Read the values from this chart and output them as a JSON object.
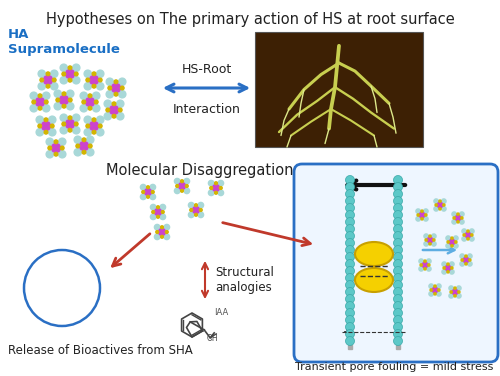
{
  "title": "Hypotheses on The primary action of HS at root surface",
  "title_fontsize": 10.5,
  "title_color": "#222222",
  "bg_color": "#ffffff",
  "ha_label_color": "#1a6fc4",
  "ha_label_fontsize": 9.5,
  "root_bg": "#3d2004",
  "box_border_color": "#2a6fc4",
  "arrow_color_blue": "#2a6fc4",
  "arrow_color_red": "#c0392b",
  "arrow_color_black": "#111111",
  "arrow_color_light_blue": "#5dade2",
  "mol_disagg_label": "Molecular Disaggregation",
  "structural_analogies": "Structural\nanalogies",
  "release_label": "Release of Bioactives from SHA",
  "transient_label": "Transient pore fouling = mild stress"
}
